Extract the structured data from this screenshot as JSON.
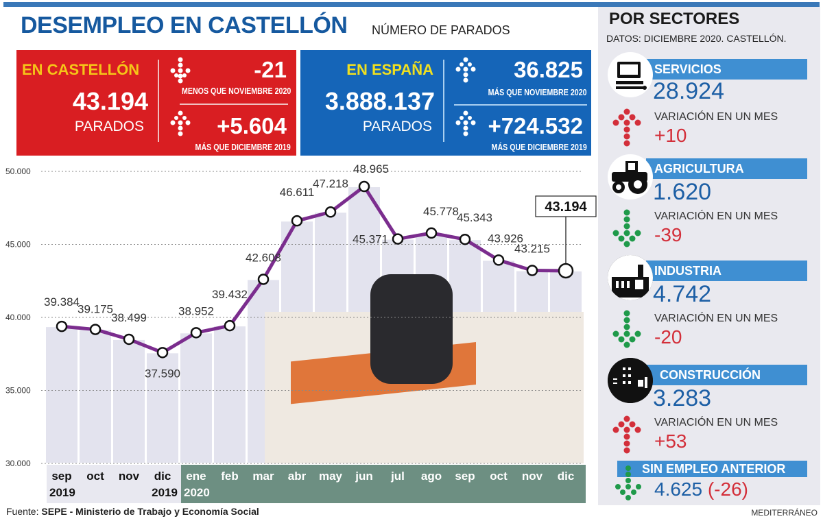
{
  "header": {
    "title": "DESEMPLEO EN CASTELLÓN",
    "subtitle": "NÚMERO DE PARADOS"
  },
  "castellon": {
    "label": "EN CASTELLÓN",
    "total": "43.194",
    "unit": "PARADOS",
    "monthly_change": "-21",
    "monthly_caption": "MENOS QUE NOVIEMBRE 2020",
    "yearly_change": "+5.604",
    "yearly_caption": "MÁS QUE DICIEMBRE 2019"
  },
  "espana": {
    "label": "EN ESPAÑA",
    "total": "3.888.137",
    "unit": "PARADOS",
    "monthly_change": "36.825",
    "monthly_caption": "MÁS QUE NOVIEMBRE 2020",
    "yearly_change": "+724.532",
    "yearly_caption": "MÁS QUE DICIEMBRE 2019"
  },
  "sectors": {
    "title": "POR SECTORES",
    "datos": "DATOS: DICIEMBRE 2020. CASTELLÓN.",
    "variation_label": "VARIACIÓN EN UN MES",
    "items": [
      {
        "name": "SERVICIOS",
        "icon": "computer-icon",
        "value": "28.924",
        "change": "+10",
        "trend": "up"
      },
      {
        "name": "AGRICULTURA",
        "icon": "tractor-icon",
        "value": "1.620",
        "change": "-39",
        "trend": "down"
      },
      {
        "name": "INDUSTRIA",
        "icon": "factory-icon",
        "value": "4.742",
        "change": "-20",
        "trend": "down"
      },
      {
        "name": "CONSTRUCCIÓN",
        "icon": "buildings-icon",
        "value": "3.283",
        "change": "+53",
        "trend": "up"
      }
    ],
    "sin_empleo": {
      "name": "SIN EMPLEO ANTERIOR",
      "value": "4.625",
      "change": "(-26)",
      "trend": "down"
    }
  },
  "chart_data": {
    "type": "line",
    "title": "DESEMPLEO EN CASTELLÓN",
    "subtitle": "NÚMERO DE PARADOS",
    "xlabel": "",
    "ylabel": "",
    "categories": [
      "sep 2019",
      "oct",
      "nov",
      "dic 2019",
      "ene 2020",
      "feb",
      "mar",
      "abr",
      "may",
      "jun",
      "jul",
      "ago",
      "sep",
      "oct",
      "nov",
      "dic"
    ],
    "x_month_labels": [
      "sep",
      "oct",
      "nov",
      "dic",
      "ene",
      "feb",
      "mar",
      "abr",
      "may",
      "jun",
      "jul",
      "ago",
      "sep",
      "oct",
      "nov",
      "dic"
    ],
    "x_year_labels": {
      "0": "2019",
      "3": "2019",
      "4": "2020"
    },
    "values": [
      39384,
      39175,
      38499,
      37590,
      38952,
      39432,
      42608,
      46611,
      47218,
      48965,
      45371,
      45778,
      45343,
      43926,
      43215,
      43194
    ],
    "value_labels": [
      "39.384",
      "39.175",
      "38.499",
      "37.590",
      "38.952",
      "39.432",
      "42.608",
      "46.611",
      "47.218",
      "48.965",
      "45.371",
      "45.778",
      "45.343",
      "43.926",
      "43.215",
      "43.194"
    ],
    "highlight": {
      "index": 15,
      "label": "43.194"
    },
    "yticks": [
      30000,
      35000,
      40000,
      45000,
      50000
    ],
    "ytick_labels": [
      "30.000",
      "35.000",
      "40.000",
      "45.000",
      "50.000"
    ],
    "ylim": [
      30000,
      50000
    ],
    "grid": "dotted horizontal",
    "line_color": "#7b2d8e",
    "legend": "none"
  },
  "footer": {
    "source_prefix": "Fuente:",
    "source": "SEPE - Ministerio de Trabajo y Economía Social",
    "credit": "MEDITERRÁNEO"
  },
  "colors": {
    "title_blue": "#16599f",
    "castellon_red": "#d91e22",
    "espana_blue": "#1565b8",
    "label_yellow": "#f5c518",
    "sector_bar": "#3f8fd2",
    "up_red": "#d32f3a",
    "down_green": "#1f9a4a",
    "line_purple": "#7b2d8e",
    "axis_band_2019": "#e8e8f0",
    "axis_band_2020": "#6d8f82"
  }
}
